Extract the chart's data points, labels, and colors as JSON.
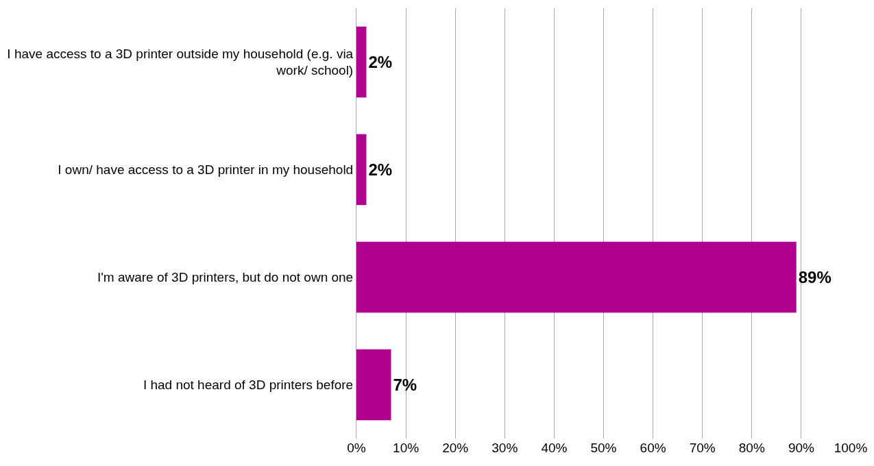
{
  "chart_data": {
    "type": "bar",
    "orientation": "horizontal",
    "categories": [
      "I have access to a 3D printer outside my household (e.g. via work/ school)",
      "I own/ have access to a 3D printer in my household",
      "I'm aware of 3D printers, but do not own one",
      "I had not heard of 3D printers before"
    ],
    "values": [
      2,
      2,
      89,
      7
    ],
    "value_labels": [
      "2%",
      "2%",
      "89%",
      "7%"
    ],
    "color": "#b0008e",
    "xlim": [
      0,
      100
    ],
    "xticks": [
      {
        "value": 0,
        "label": "0%"
      },
      {
        "value": 10,
        "label": "10%"
      },
      {
        "value": 20,
        "label": "20%"
      },
      {
        "value": 30,
        "label": "30%"
      },
      {
        "value": 40,
        "label": "40%"
      },
      {
        "value": 50,
        "label": "50%"
      },
      {
        "value": 60,
        "label": "60%"
      },
      {
        "value": 70,
        "label": "70%"
      },
      {
        "value": 80,
        "label": "80%"
      },
      {
        "value": 90,
        "label": "90%"
      },
      {
        "value": 100,
        "label": "100%"
      }
    ],
    "grid": "x",
    "legend": false
  }
}
